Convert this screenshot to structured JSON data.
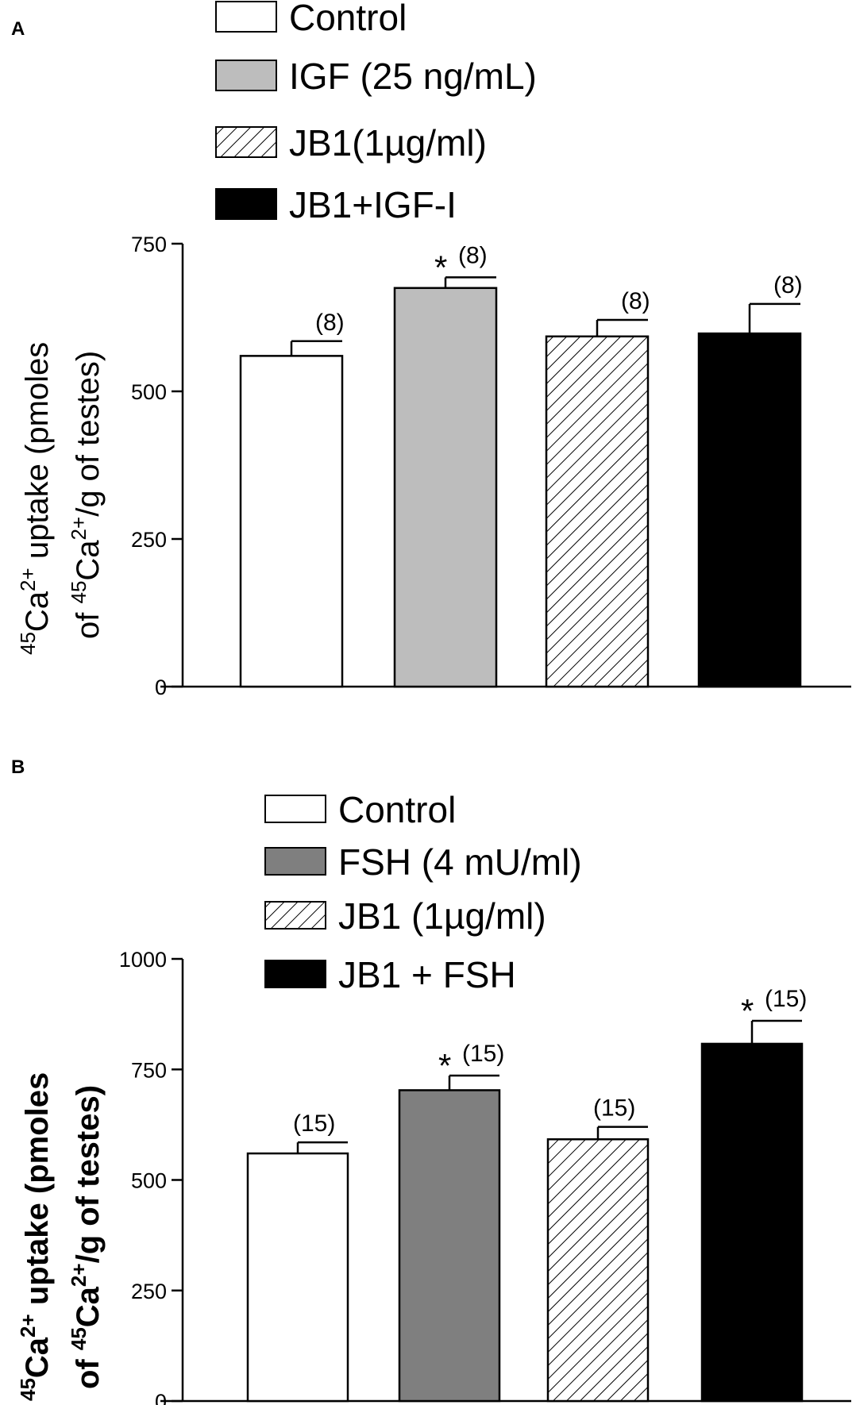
{
  "chart_data": [
    {
      "panel": "A",
      "type": "bar",
      "legend": [
        "Control",
        "IGF (25 ng/mL)",
        "JB1(1µg/ml)",
        "JB1+IGF-I"
      ],
      "categories": [
        "Control",
        "IGF (25 ng/mL)",
        "JB1(1µg/ml)",
        "JB1+IGF-I"
      ],
      "series": [
        {
          "name": "45Ca2+ uptake",
          "values": [
            560,
            675,
            593,
            598
          ],
          "errors": [
            25,
            18,
            28,
            50
          ]
        }
      ],
      "n_labels": [
        "(8)",
        "(8)",
        "(8)",
        "(8)"
      ],
      "significance": [
        "",
        "*",
        "",
        ""
      ],
      "ylabel_line1": [
        "45",
        "Ca",
        "2+",
        " uptake (pmoles"
      ],
      "ylabel_line2": [
        "of ",
        "45",
        "Ca",
        "2+",
        "/g of testes)"
      ],
      "ylim": [
        0,
        750
      ],
      "yticks": [
        0,
        250,
        500,
        750
      ],
      "fills": [
        "#ffffff",
        "#bdbdbd",
        "hatch",
        "#000000"
      ]
    },
    {
      "panel": "B",
      "type": "bar",
      "legend": [
        "Control",
        "FSH (4 mU/ml)",
        "JB1 (1µg/ml)",
        "JB1 + FSH"
      ],
      "categories": [
        "Control",
        "FSH (4 mU/ml)",
        "JB1 (1µg/ml)",
        "JB1 + FSH"
      ],
      "series": [
        {
          "name": "45Ca2+ uptake",
          "values": [
            560,
            703,
            592,
            808
          ],
          "errors": [
            25,
            33,
            28,
            52
          ]
        }
      ],
      "n_labels": [
        "(15)",
        "(15)",
        "(15)",
        "(15)"
      ],
      "significance": [
        "",
        "*",
        "",
        "*"
      ],
      "ylabel_line1": [
        "45",
        "Ca",
        "2+",
        " uptake (pmoles"
      ],
      "ylabel_line2": [
        "of ",
        "45",
        "Ca",
        "2+",
        "/g of testes)"
      ],
      "ylim": [
        0,
        1000
      ],
      "yticks": [
        0,
        250,
        500,
        750,
        1000
      ],
      "fills": [
        "#ffffff",
        "#7f7f7f",
        "hatch",
        "#000000"
      ]
    }
  ]
}
